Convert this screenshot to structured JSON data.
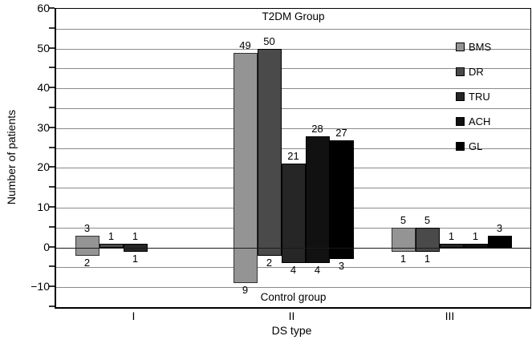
{
  "chart_data": {
    "type": "bar",
    "title": "T2DM Group",
    "negative_annotation": "Control group",
    "xlabel": "DS type",
    "ylabel": "Number of patients",
    "categories": [
      "I",
      "II",
      "III"
    ],
    "series": [
      {
        "name": "BMS",
        "color": "#949494",
        "border": "#333333",
        "t2dm": [
          3,
          49,
          5
        ],
        "control": [
          2,
          9,
          1
        ]
      },
      {
        "name": "DR",
        "color": "#4a4a4a",
        "border": "#000000",
        "t2dm": [
          1,
          50,
          5
        ],
        "control": [
          0,
          2,
          1
        ]
      },
      {
        "name": "TRU",
        "color": "#262626",
        "border": "#000000",
        "t2dm": [
          1,
          21,
          1
        ],
        "control": [
          1,
          4,
          0
        ]
      },
      {
        "name": "ACH",
        "color": "#111111",
        "border": "#000000",
        "t2dm": [
          0,
          28,
          1
        ],
        "control": [
          0,
          4,
          0
        ]
      },
      {
        "name": "GL",
        "color": "#000000",
        "border": "#000000",
        "t2dm": [
          0,
          27,
          3
        ],
        "control": [
          0,
          3,
          0
        ]
      }
    ],
    "ylim": [
      -15,
      60
    ],
    "grid_step": 5,
    "grid": true,
    "yticks": [
      {
        "v": 60,
        "label": "60"
      },
      {
        "v": 50,
        "label": "50"
      },
      {
        "v": 40,
        "label": "40"
      },
      {
        "v": 30,
        "label": "30"
      },
      {
        "v": 20,
        "label": "20"
      },
      {
        "v": 10,
        "label": "10"
      },
      {
        "v": 0,
        "label": "0"
      },
      {
        "v": -10,
        "label": "−10"
      }
    ],
    "legend_position": "inside-right",
    "colors": {
      "gridline": "#8a8a8a",
      "axis": "#000000",
      "background": "#ffffff"
    }
  }
}
